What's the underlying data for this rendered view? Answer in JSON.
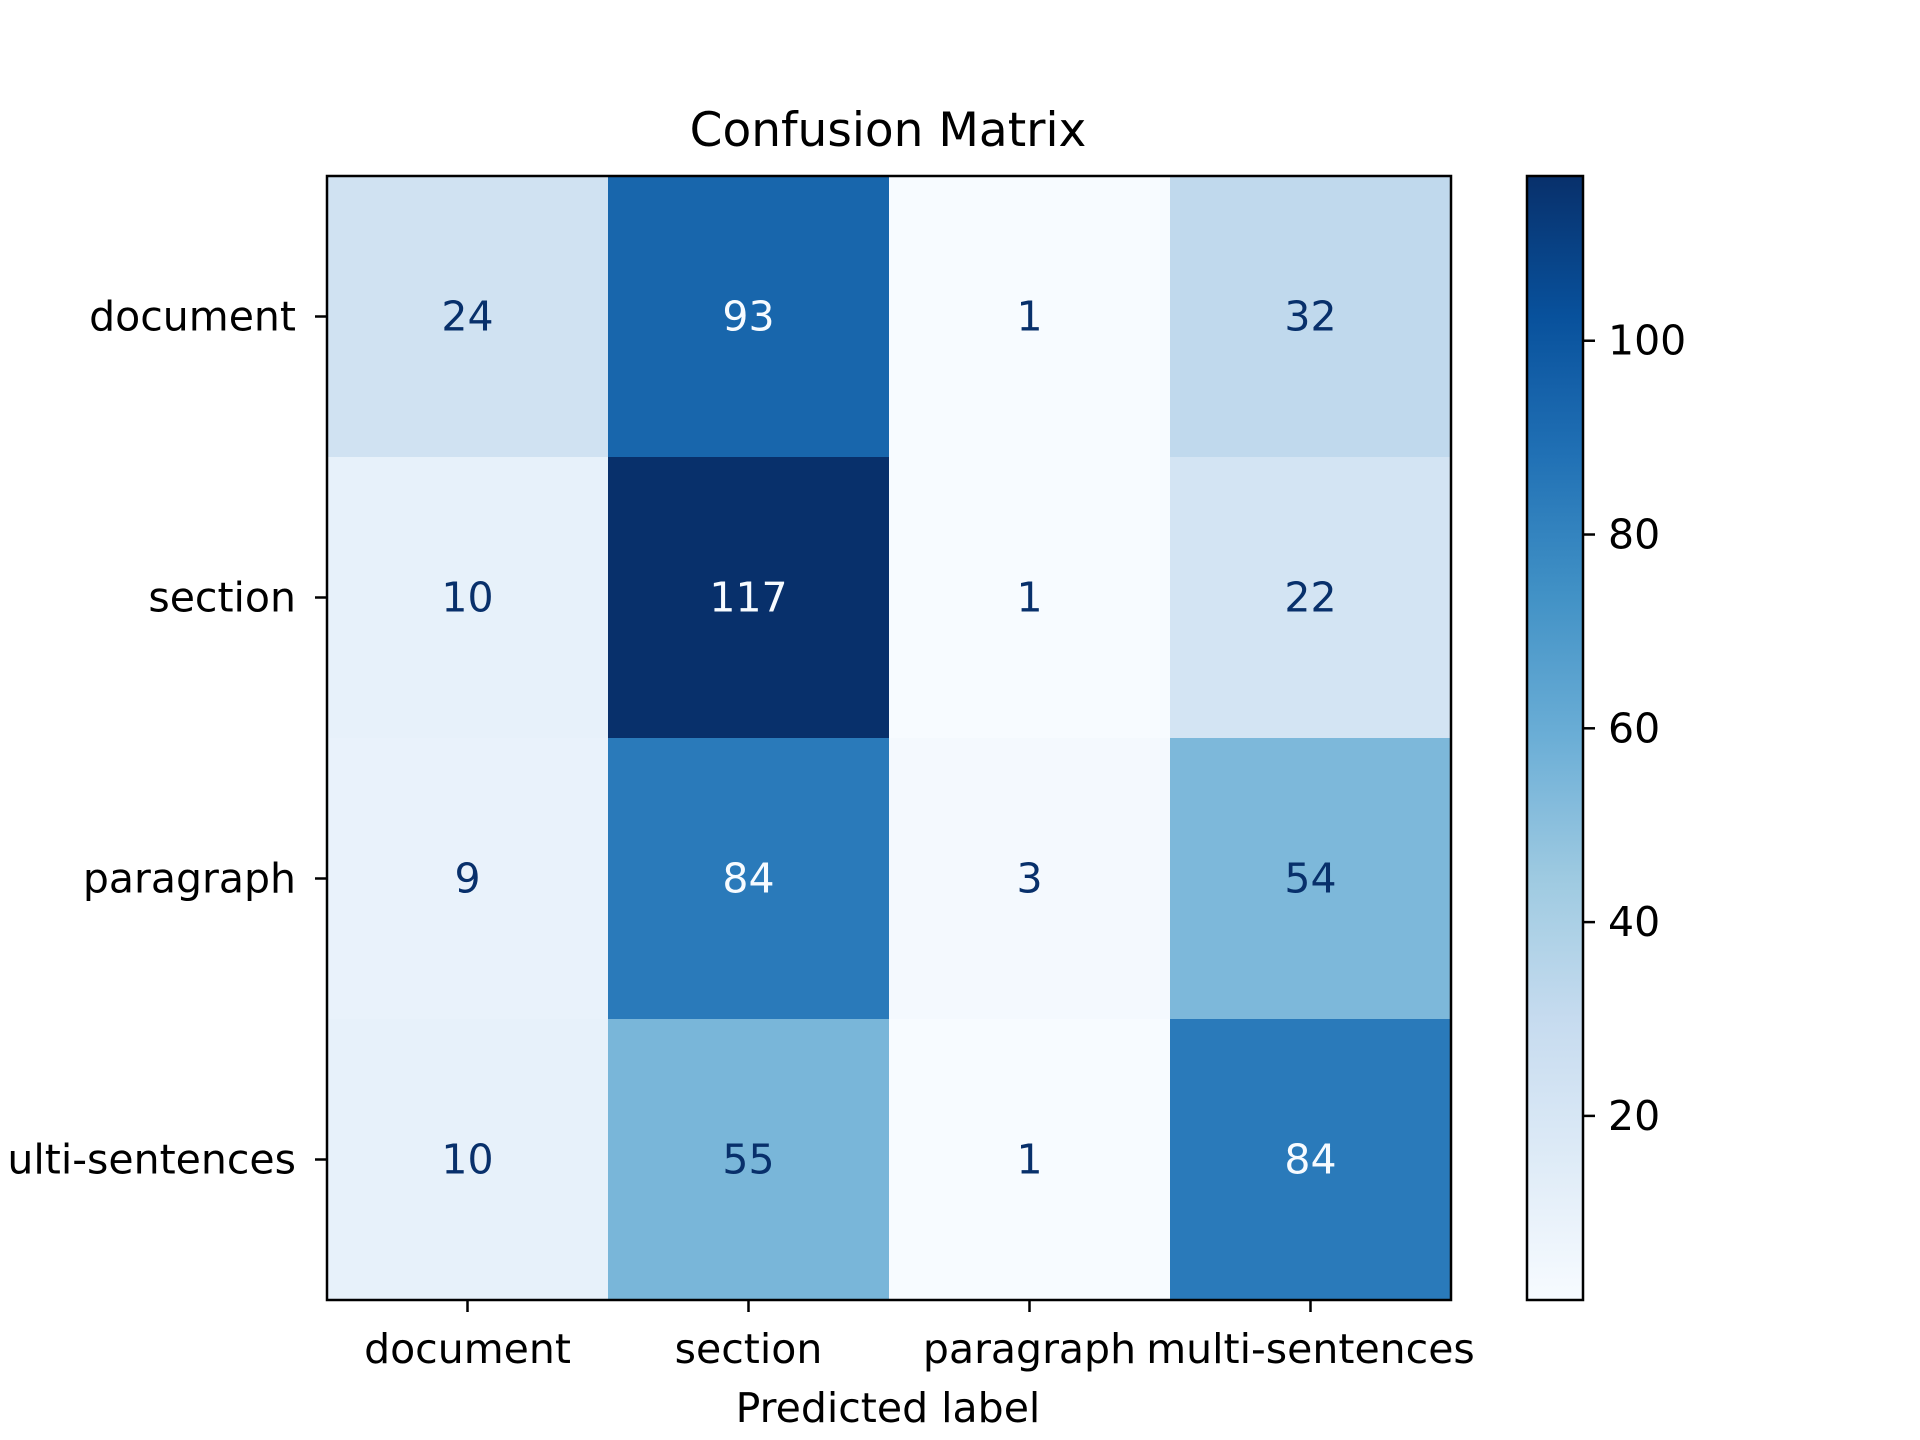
{
  "chart_data": {
    "type": "heatmap",
    "title": "Confusion Matrix",
    "xlabel": "Predicted label",
    "ylabel": "",
    "x_categories": [
      "document",
      "section",
      "paragraph",
      "multi-sentences"
    ],
    "y_categories": [
      "document",
      "section",
      "paragraph",
      "multi-sentences"
    ],
    "y_tick_labels_shown": [
      "document",
      "section",
      "paragraph",
      "ulti-sentences"
    ],
    "values": [
      [
        24,
        93,
        1,
        32
      ],
      [
        10,
        117,
        1,
        22
      ],
      [
        9,
        84,
        3,
        54
      ],
      [
        10,
        55,
        1,
        84
      ]
    ],
    "colormap": "Blues",
    "color_range": [
      1,
      117
    ],
    "colorbar": {
      "ticks": [
        20,
        40,
        60,
        80,
        100
      ],
      "tick_labels": [
        "20",
        "40",
        "60",
        "80",
        "100"
      ]
    },
    "colors": {
      "low": "#f7fbff",
      "high": "#08306b",
      "dark_text": "#08306b",
      "light_text": "#f7fbff"
    }
  }
}
